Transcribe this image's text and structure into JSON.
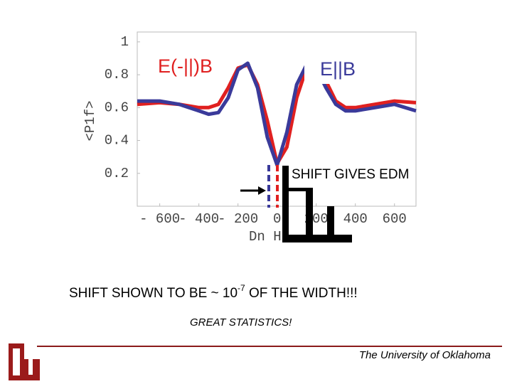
{
  "chart_data": {
    "type": "line",
    "x_label": "Dn Hz",
    "y_label": "<P1f>",
    "x": [
      -715,
      -600,
      -500,
      -400,
      -350,
      -300,
      -250,
      -200,
      -150,
      -100,
      -50,
      0,
      50,
      100,
      150,
      200,
      250,
      300,
      350,
      400,
      500,
      600,
      710
    ],
    "series": [
      {
        "name": "E(-||)B",
        "color": "#e02020",
        "values": [
          0.62,
          0.63,
          0.62,
          0.6,
          0.6,
          0.62,
          0.72,
          0.84,
          0.86,
          0.74,
          0.52,
          0.26,
          0.36,
          0.66,
          0.84,
          0.86,
          0.76,
          0.64,
          0.6,
          0.6,
          0.62,
          0.64,
          0.63
        ]
      },
      {
        "name": "E||B",
        "color": "#3a3a9a",
        "values": [
          0.64,
          0.64,
          0.62,
          0.58,
          0.56,
          0.57,
          0.66,
          0.83,
          0.87,
          0.72,
          0.42,
          0.25,
          0.45,
          0.74,
          0.86,
          0.84,
          0.72,
          0.62,
          0.58,
          0.58,
          0.6,
          0.62,
          0.58
        ]
      }
    ],
    "xlim": [
      -715,
      710
    ],
    "ylim": [
      0,
      1.06
    ],
    "xticks": [
      {
        "value": -600,
        "label": "- 600"
      },
      {
        "value": -400,
        "label": "- 400"
      },
      {
        "value": -200,
        "label": "- 200"
      },
      0,
      200,
      400,
      600
    ],
    "yticks": [
      0.2,
      0.4,
      0.6,
      0.8,
      1
    ],
    "annotation": "SHIFT GIVES EDM"
  },
  "slide": {
    "statement": [
      "SHIFT SHOWN TO BE ~ 10",
      "-7",
      " OF THE WIDTH!!!"
    ],
    "note": "GREAT STATISTICS!",
    "footer": "The University of Oklahoma"
  }
}
